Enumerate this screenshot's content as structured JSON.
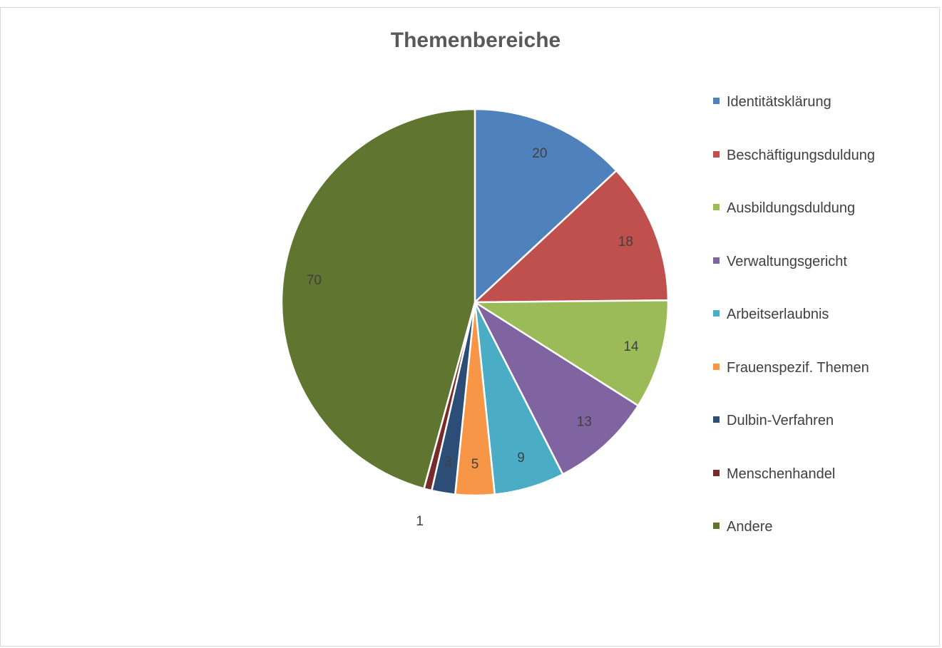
{
  "chart_data": {
    "type": "pie",
    "title": "Themenbereiche",
    "legend_position": "right",
    "slices": [
      {
        "label": "Identitätsklärung",
        "value": 20,
        "color": "#4F81BD"
      },
      {
        "label": "Beschäftigungsduldung",
        "value": 18,
        "color": "#C0504D"
      },
      {
        "label": "Ausbildungsduldung",
        "value": 14,
        "color": "#9BBB59"
      },
      {
        "label": "Verwaltungsgericht",
        "value": 13,
        "color": "#8064A2"
      },
      {
        "label": "Arbeitserlaubnis",
        "value": 9,
        "color": "#4BACC6"
      },
      {
        "label": "Frauenspezif. Themen",
        "value": 5,
        "color": "#F79646"
      },
      {
        "label": "Dulbin-Verfahren",
        "value": 3,
        "color": "#2C4D75"
      },
      {
        "label": "Menschenhandel",
        "value": 1,
        "color": "#772C2A"
      },
      {
        "label": "Andere",
        "value": 70,
        "color": "#5F7530"
      }
    ]
  }
}
